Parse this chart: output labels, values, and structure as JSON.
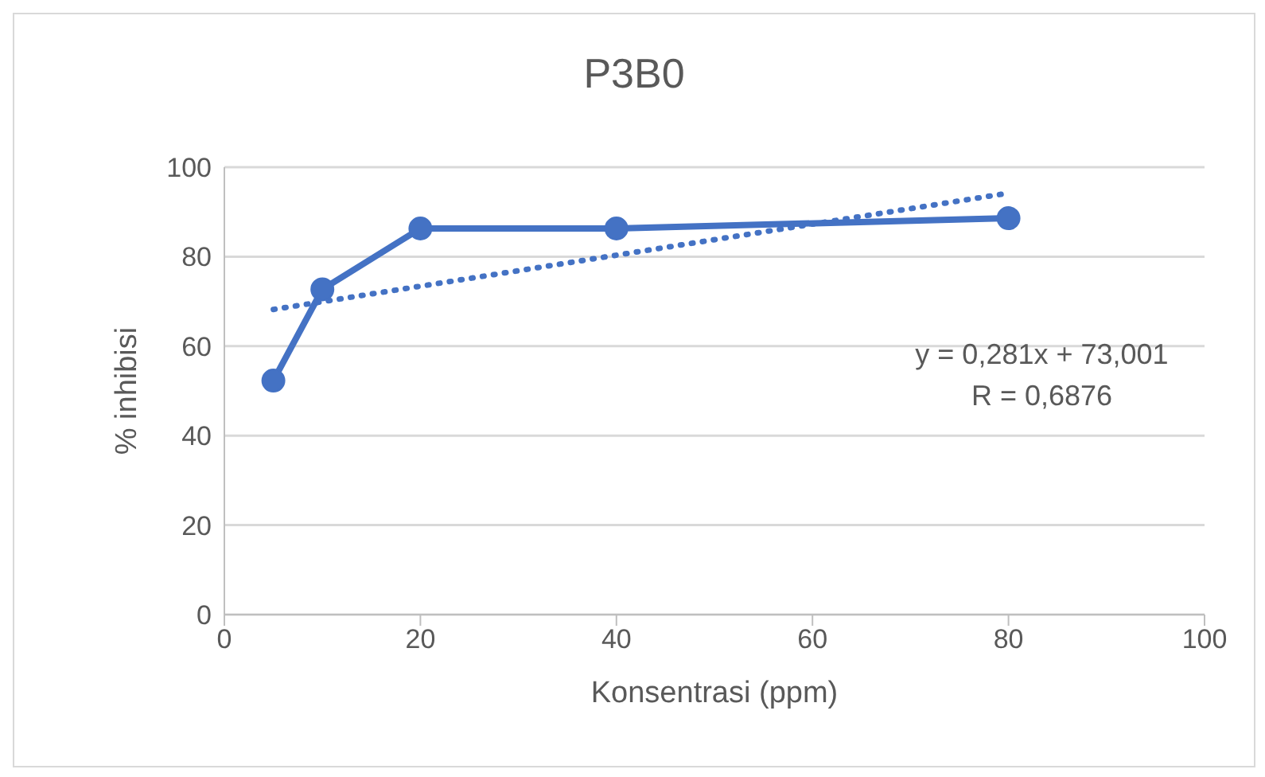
{
  "chart_data": {
    "type": "line",
    "title": "P3B0",
    "xlabel": "Konsentrasi (ppm)",
    "ylabel": "% inhibisi",
    "x": [
      5,
      10,
      20,
      40,
      80
    ],
    "series": [
      {
        "color": "#4472c4",
        "values": [
          52.3,
          72.7,
          86.3,
          86.3,
          88.6
        ],
        "marker": "circle",
        "line_style": "solid"
      },
      {
        "color": "#4472c4",
        "x": [
          5,
          80
        ],
        "values": [
          68.2,
          94.2
        ],
        "marker": "none",
        "line_style": "dotted"
      }
    ],
    "xlim": [
      0,
      100
    ],
    "xticks": [
      0,
      20,
      40,
      60,
      80,
      100
    ],
    "ylim": [
      0,
      100
    ],
    "yticks": [
      0,
      20,
      40,
      60,
      80,
      100
    ],
    "grid": "y",
    "annotations": [
      "y = 0,281x + 73,001",
      "R = 0,6876"
    ]
  }
}
